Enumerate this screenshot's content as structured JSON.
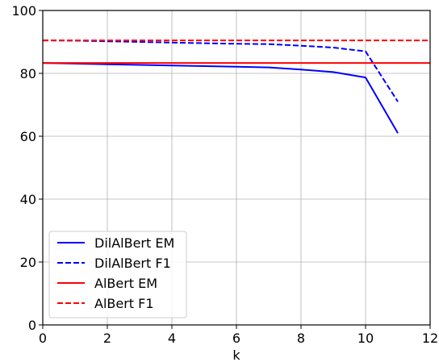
{
  "chart_data": {
    "type": "line",
    "xlabel": "k",
    "ylabel": "",
    "xlim": [
      0,
      12
    ],
    "ylim": [
      0,
      100
    ],
    "xticks": [
      0,
      2,
      4,
      6,
      8,
      10,
      12
    ],
    "yticks": [
      0,
      20,
      40,
      60,
      80,
      100
    ],
    "grid": true,
    "legend_position": "lower-left",
    "series": [
      {
        "name": "DilAlBert EM",
        "color": "#0000ff",
        "dash": "solid",
        "x": [
          0,
          1,
          2,
          3,
          4,
          5,
          6,
          7,
          8,
          9,
          10,
          11
        ],
        "y": [
          83.3,
          83.1,
          82.9,
          82.7,
          82.5,
          82.3,
          82.1,
          81.9,
          81.2,
          80.4,
          78.7,
          61.0
        ]
      },
      {
        "name": "DilAlBert F1",
        "color": "#0000ff",
        "dash": "dashed",
        "x": [
          0,
          1,
          2,
          3,
          4,
          5,
          6,
          7,
          8,
          9,
          10,
          11
        ],
        "y": [
          90.5,
          90.4,
          90.2,
          90.0,
          89.8,
          89.6,
          89.4,
          89.3,
          88.8,
          88.2,
          87.0,
          71.0
        ]
      },
      {
        "name": "AlBert EM",
        "color": "#ff0000",
        "dash": "solid",
        "x": [
          0,
          12
        ],
        "y": [
          83.3,
          83.3
        ]
      },
      {
        "name": "AlBert F1",
        "color": "#ff0000",
        "dash": "dashed",
        "x": [
          0,
          12
        ],
        "y": [
          90.5,
          90.5
        ]
      }
    ]
  }
}
